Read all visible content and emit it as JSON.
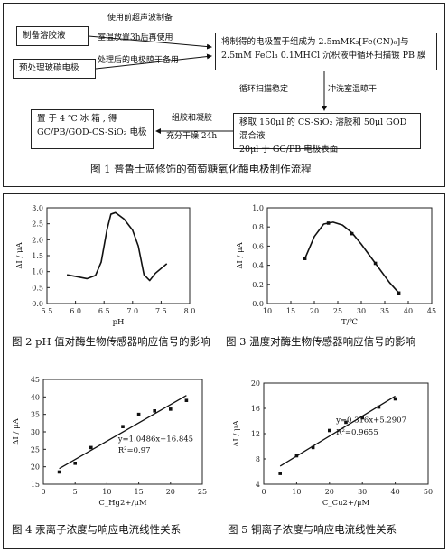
{
  "flowchart": {
    "box_electrolyte": "制备溶胶液",
    "box_pretreat": "预处理玻碳电极",
    "label_sonic": "使用前超声波制备",
    "label_rt": "室温放置3h后再使用",
    "label_electrode_ready": "处理后的电极晾干备用",
    "box_pb_line1": "将制得的电极置于组成为 2.5mMK₃[Fe(CN)₆]与",
    "box_pb_line2": "2.5mM FeCl₃ 0.1MHCl 沉积液中循环扫描镀 PB 膜",
    "label_cycle": "循环扫描稳定",
    "label_rinse": "冲洗室温晾干",
    "box_sol_line1": "移取 150μl 的 CS-SiO₂ 溶胶和 50μl GOD 混合液",
    "box_sol_line2": "20μl 于 GC/PB 电极表面",
    "label_dry_line1": "组胶和凝胶",
    "label_dry_line2": "充分干燥 24h",
    "box_store_line1": "置 于 4 ℃ 冰 箱 , 得",
    "box_store_line2": "GC/PB/GOD-CS-SiO₂ 电极",
    "caption": "图 1  普鲁士蓝修饰的葡萄糖氧化酶电极制作流程"
  },
  "captions": {
    "fig2": "图 2 pH 值对酶生物传感器响应信号的影响",
    "fig3": "图 3  温度对酶生物传感器响应信号的影响",
    "fig4": "图 4  汞离子浓度与响应电流线性关系",
    "fig5": "图 5  铜离子浓度与响应电流线性关系"
  },
  "chart_data": [
    {
      "id": "fig2",
      "type": "line",
      "xlabel": "pH",
      "ylabel": "ΔI / μA",
      "xlim": [
        5.5,
        8.0
      ],
      "ylim": [
        0.0,
        3.0
      ],
      "xticks": [
        "5.5",
        "6.0",
        "6.5",
        "7.0",
        "7.5",
        "8.0"
      ],
      "yticks": [
        "0.0",
        "0.5",
        "1.0",
        "1.5",
        "2.0",
        "2.5",
        "3.0"
      ],
      "x": [
        5.85,
        6.0,
        6.2,
        6.35,
        6.45,
        6.55,
        6.62,
        6.7,
        6.85,
        7.0,
        7.1,
        7.2,
        7.3,
        7.4,
        7.6
      ],
      "y": [
        0.9,
        0.85,
        0.78,
        0.88,
        1.3,
        2.3,
        2.8,
        2.85,
        2.65,
        2.3,
        1.8,
        0.9,
        0.72,
        0.95,
        1.25
      ]
    },
    {
      "id": "fig3",
      "type": "line",
      "xlabel": "T/℃",
      "ylabel": "ΔI / μA",
      "xlim": [
        10,
        45
      ],
      "ylim": [
        0.0,
        1.0
      ],
      "xticks": [
        "10",
        "15",
        "20",
        "25",
        "30",
        "35",
        "40",
        "45"
      ],
      "yticks": [
        "0.0",
        "0.2",
        "0.4",
        "0.6",
        "0.8",
        "1.0"
      ],
      "points_x": [
        18,
        23,
        28,
        33,
        38
      ],
      "points_y": [
        0.47,
        0.84,
        0.73,
        0.42,
        0.11
      ],
      "x": [
        18,
        20,
        22,
        24,
        26,
        28,
        30,
        33,
        36,
        38
      ],
      "y": [
        0.47,
        0.7,
        0.83,
        0.85,
        0.82,
        0.74,
        0.62,
        0.42,
        0.22,
        0.11
      ]
    },
    {
      "id": "fig4",
      "type": "scatter",
      "xlabel": "C_Hg2+/μM",
      "ylabel": "ΔI / μA",
      "xlim": [
        0,
        25
      ],
      "ylim": [
        15,
        45
      ],
      "xticks": [
        "0",
        "5",
        "10",
        "15",
        "20",
        "25"
      ],
      "yticks": [
        "15",
        "20",
        "25",
        "30",
        "35",
        "40",
        "45"
      ],
      "x": [
        2.5,
        5,
        7.5,
        12.5,
        15,
        17.5,
        20,
        22.5
      ],
      "y": [
        18.5,
        21,
        25.5,
        31.5,
        35,
        36,
        36.5,
        39
      ],
      "fit": {
        "slope": 1.0486,
        "intercept": 16.845
      },
      "equation": "y=1.0486x+16.845",
      "r2": "R²=0.97"
    },
    {
      "id": "fig5",
      "type": "scatter",
      "xlabel": "C_Cu2+/μM",
      "ylabel": "ΔI / μA",
      "xlim": [
        0,
        50
      ],
      "ylim": [
        4,
        20
      ],
      "xticks": [
        "0",
        "10",
        "20",
        "30",
        "40",
        "50"
      ],
      "yticks": [
        "4",
        "8",
        "12",
        "16",
        "20"
      ],
      "x": [
        5,
        10,
        15,
        20,
        25,
        30,
        35,
        40
      ],
      "y": [
        5.7,
        8.5,
        9.8,
        12.5,
        13.8,
        14.5,
        16.2,
        17.5
      ],
      "fit": {
        "slope": 0.316,
        "intercept": 5.2907
      },
      "equation": "y=0.316x+5.2907",
      "r2": "R²=0.9655"
    }
  ]
}
